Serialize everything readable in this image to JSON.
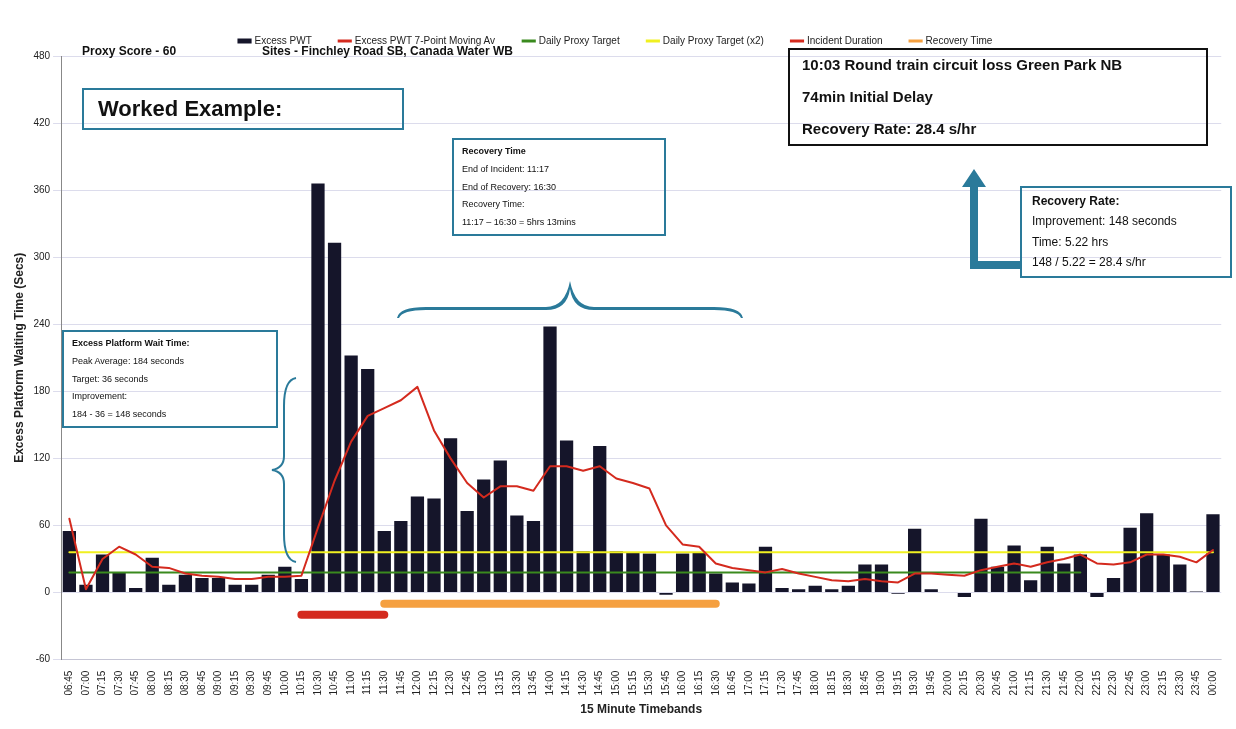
{
  "chart_data": {
    "type": "bar",
    "xlabel": "15 Minute Timebands",
    "ylabel": "Excess Platform Waiting Time (Secs)",
    "categories": [
      "06:45",
      "07:00",
      "07:15",
      "07:30",
      "07:45",
      "08:00",
      "08:15",
      "08:30",
      "08:45",
      "09:00",
      "09:15",
      "09:30",
      "09:45",
      "10:00",
      "10:15",
      "10:30",
      "10:45",
      "11:00",
      "11:15",
      "11:30",
      "11:45",
      "12:00",
      "12:15",
      "12:30",
      "12:45",
      "13:00",
      "13:15",
      "13:30",
      "13:45",
      "14:00",
      "14:15",
      "14:30",
      "14:45",
      "15:00",
      "15:15",
      "15:30",
      "15:45",
      "16:00",
      "16:15",
      "16:30",
      "16:45",
      "17:00",
      "17:15",
      "17:30",
      "17:45",
      "18:00",
      "18:15",
      "18:30",
      "18:45",
      "19:00",
      "19:15",
      "19:30",
      "19:45",
      "20:00",
      "20:15",
      "20:30",
      "20:45",
      "21:00",
      "21:15",
      "21:30",
      "21:45",
      "22:00",
      "22:15",
      "22:30",
      "22:45",
      "23:00",
      "23:15",
      "23:30",
      "23:45",
      "00:00"
    ],
    "series": [
      {
        "name": "Excess PWT",
        "color": "#15152a",
        "values": [
          55,
          7,
          34,
          18,
          4,
          31,
          7,
          16,
          13,
          13,
          7,
          7,
          16,
          23,
          12,
          366,
          313,
          212,
          200,
          55,
          64,
          86,
          84,
          138,
          73,
          101,
          118,
          69,
          64,
          238,
          136,
          37,
          131,
          37,
          36,
          35,
          -2,
          35,
          36,
          17,
          9,
          8,
          41,
          4,
          3,
          6,
          3,
          6,
          25,
          25,
          -1,
          57,
          3,
          0,
          -4,
          66,
          23,
          42,
          11,
          41,
          26,
          34,
          -4,
          13,
          58,
          71,
          34,
          25,
          1,
          70
        ]
      },
      {
        "name": "Excess PWT 7-Point Moving Av",
        "type": "line",
        "color": "#d42a1e",
        "values": [
          66,
          3,
          30,
          41,
          34,
          23,
          22,
          17,
          15,
          14,
          12,
          12,
          14,
          14,
          15,
          58,
          100,
          135,
          158,
          165,
          172,
          184,
          145,
          120,
          98,
          85,
          95,
          95,
          91,
          113,
          113,
          109,
          113,
          102,
          98,
          93,
          60,
          43,
          41,
          26,
          22,
          20,
          18,
          21,
          17,
          14,
          11,
          10,
          12,
          10,
          9,
          17,
          17,
          16,
          15,
          20,
          23,
          26,
          23,
          27,
          30,
          34,
          26,
          25,
          27,
          34,
          34,
          32,
          27,
          38
        ]
      },
      {
        "name": "Daily Proxy Target",
        "type": "line",
        "color": "#3a8a1e",
        "values": [
          18,
          18,
          18,
          18,
          18,
          18,
          18,
          18,
          18,
          18,
          18,
          18,
          18,
          18,
          18,
          18,
          18,
          18,
          18,
          18,
          18,
          18,
          18,
          18,
          18,
          18,
          18,
          18,
          18,
          18,
          18,
          18,
          18,
          18,
          18,
          18,
          18,
          18,
          18,
          18,
          18,
          18,
          18,
          18,
          18,
          18,
          18,
          18,
          18,
          18,
          18,
          18,
          18,
          18,
          18,
          18,
          18,
          18,
          18,
          18,
          18,
          18,
          null,
          null,
          null,
          null,
          null,
          null,
          null,
          null
        ]
      },
      {
        "name": "Daily Proxy Target (x2)",
        "type": "line",
        "color": "#f0f020",
        "values": [
          36,
          36,
          36,
          36,
          36,
          36,
          36,
          36,
          36,
          36,
          36,
          36,
          36,
          36,
          36,
          36,
          36,
          36,
          36,
          36,
          36,
          36,
          36,
          36,
          36,
          36,
          36,
          36,
          36,
          36,
          36,
          36,
          36,
          36,
          36,
          36,
          36,
          36,
          36,
          36,
          36,
          36,
          36,
          36,
          36,
          36,
          36,
          36,
          36,
          36,
          36,
          36,
          36,
          36,
          36,
          36,
          36,
          36,
          36,
          36,
          36,
          36,
          36,
          36,
          36,
          36,
          36,
          36,
          36,
          36
        ]
      },
      {
        "name": "Incident Duration",
        "type": "line",
        "color": "#d42a1e",
        "values": [
          null,
          null,
          null,
          null,
          null,
          null,
          null,
          null,
          null,
          null,
          null,
          null,
          null,
          null,
          -20,
          -20,
          -20,
          -20,
          -20,
          -20,
          null,
          null,
          null,
          null,
          null,
          null,
          null,
          null,
          null,
          null,
          null,
          null,
          null,
          null,
          null,
          null,
          null,
          null,
          null,
          null,
          null,
          null,
          null,
          null,
          null,
          null,
          null,
          null,
          null,
          null,
          null,
          null,
          null,
          null,
          null,
          null,
          null,
          null,
          null,
          null,
          null,
          null,
          null,
          null,
          null,
          null,
          null,
          null,
          null,
          null
        ]
      },
      {
        "name": "Recovery Time",
        "type": "line",
        "color": "#f5a040",
        "values": [
          null,
          null,
          null,
          null,
          null,
          null,
          null,
          null,
          null,
          null,
          null,
          null,
          null,
          null,
          null,
          null,
          null,
          null,
          null,
          -10,
          -10,
          -10,
          -10,
          -10,
          -10,
          -10,
          -10,
          -10,
          -10,
          -10,
          -10,
          -10,
          -10,
          -10,
          -10,
          -10,
          -10,
          -10,
          -10,
          -10,
          null,
          null,
          null,
          null,
          null,
          null,
          null,
          null,
          null,
          null,
          null,
          null,
          null,
          null,
          null,
          null,
          null,
          null,
          null,
          null,
          null,
          null,
          null,
          null,
          null,
          null,
          null,
          null,
          null,
          null
        ]
      }
    ],
    "ylim": [
      -60,
      480
    ],
    "yticks": [
      -60,
      0,
      60,
      120,
      180,
      240,
      300,
      360,
      420,
      480
    ],
    "grid": "y",
    "legend": "top",
    "marker": "none",
    "annotations": [
      "Proxy Score - 60",
      "Sites - Finchley Road SB, Canada Water WB",
      "Worked Example:",
      "10:03 Round train circuit loss Green Park NB\n74min Initial Delay\nRecovery Rate: 28.4 s/hr",
      "Recovery Rate:\nImprovement: 148 seconds\nTime: 5.22 hrs\n148 / 5.22 = 28.4 s/hr",
      "Recovery Time\nEnd of Incident: 11:17\nEnd of Recovery: 16:30\nRecovery Time:\n11:17 – 16:30 = 5hrs 13mins",
      "Excess Platform Wait Time:\nPeak Average: 184 seconds\nTarget: 36 seconds\nImprovement:\n184 - 36 = 148 seconds"
    ]
  }
}
